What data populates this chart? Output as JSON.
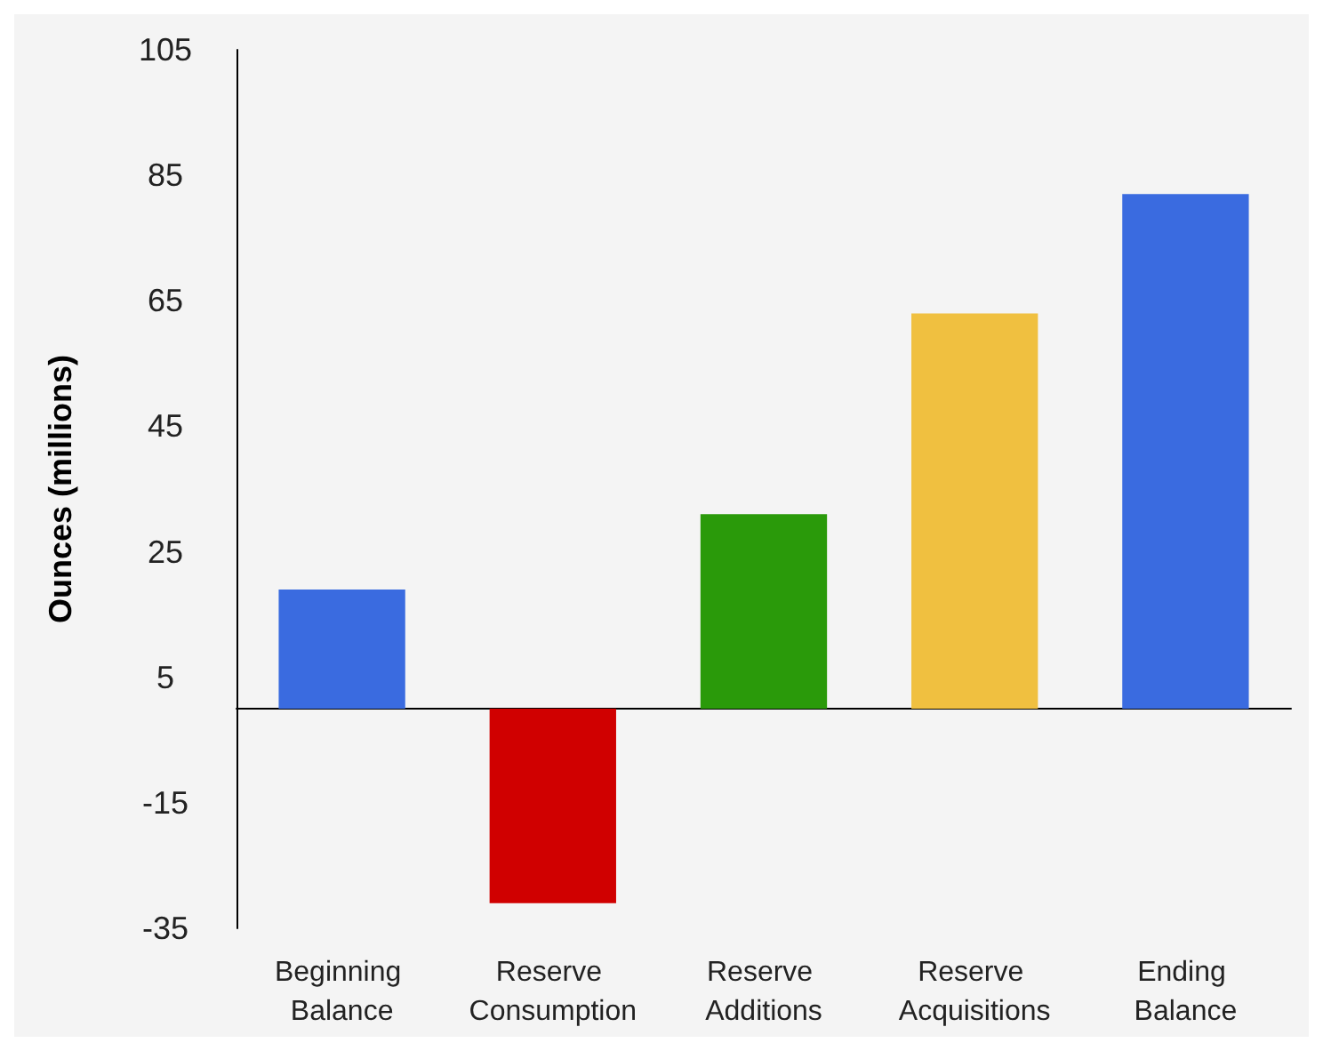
{
  "chart_data": {
    "type": "bar",
    "ylabel": "Ounces (millions)",
    "categories": [
      "Beginning Balance",
      "Reserve Consumption",
      "Reserve Additions",
      "Reserve Acquisitions",
      "Ending Balance"
    ],
    "values": [
      19,
      -31,
      31,
      63,
      82
    ],
    "colors": [
      "#3a6be0",
      "#d00000",
      "#2a9a0a",
      "#f0c040",
      "#3a6be0"
    ],
    "ylim": [
      -35,
      105
    ],
    "yticks": [
      -35,
      -15,
      5,
      25,
      45,
      65,
      85,
      105
    ],
    "grid": false
  }
}
